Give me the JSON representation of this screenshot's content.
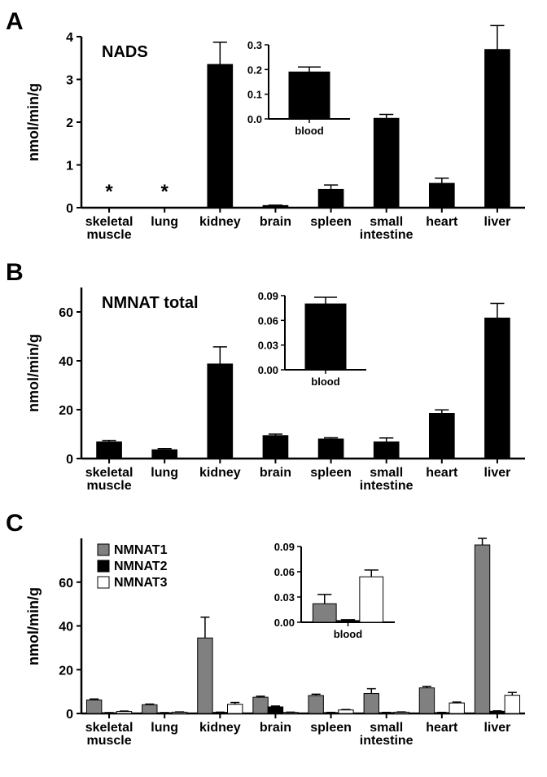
{
  "categories": [
    "skeletal\nmuscle",
    "lung",
    "kidney",
    "brain",
    "spleen",
    "small\nintestine",
    "heart",
    "liver"
  ],
  "colors": {
    "black": "#000000",
    "gray": "#808080",
    "white": "#ffffff",
    "axis": "#000000",
    "bg": "#ffffff"
  },
  "font": {
    "panel_letter": 30,
    "title": 20,
    "axis_label": 18,
    "tick": 16,
    "tick_small": 13,
    "legend": 16
  },
  "panelA": {
    "letter": "A",
    "title": "NADS",
    "ylabel": "nmol/min/g",
    "ylim": [
      0,
      4
    ],
    "yticks": [
      0,
      1,
      2,
      3,
      4
    ],
    "bar_color": "#000000",
    "values": [
      null,
      null,
      3.35,
      0.05,
      0.43,
      2.09,
      0.57,
      3.7
    ],
    "errors": [
      0,
      0,
      0.52,
      0.01,
      0.1,
      0.09,
      0.12,
      0.56
    ],
    "asterisk": [
      true,
      true,
      false,
      false,
      false,
      false,
      false,
      false
    ],
    "bar_width": 0.45,
    "inset": {
      "categories": [
        "blood"
      ],
      "ylim": [
        0,
        0.3
      ],
      "yticks": [
        0.0,
        0.1,
        0.2,
        0.3
      ],
      "values": [
        0.19
      ],
      "errors": [
        0.02
      ],
      "bar_color": "#000000",
      "bar_width": 0.5
    }
  },
  "panelB": {
    "letter": "B",
    "title": "NMNAT total",
    "ylabel": "nmol/min/g",
    "ylim": [
      0,
      70
    ],
    "yticks": [
      0,
      20,
      40,
      60
    ],
    "bar_color": "#000000",
    "values": [
      6.8,
      3.6,
      38.7,
      9.4,
      8.0,
      6.8,
      18.5,
      57.5
    ],
    "errors": [
      0.6,
      0.5,
      7.0,
      0.6,
      0.5,
      1.6,
      1.4,
      6.0
    ],
    "bar_width": 0.45,
    "inset": {
      "categories": [
        "blood"
      ],
      "ylim": [
        0,
        0.09
      ],
      "yticks": [
        0.0,
        0.03,
        0.06,
        0.09
      ],
      "values": [
        0.08
      ],
      "errors": [
        0.008
      ],
      "bar_color": "#000000",
      "bar_width": 0.5
    }
  },
  "panelC": {
    "letter": "C",
    "ylabel": "nmol/min/g",
    "ylim": [
      0,
      80
    ],
    "yticks": [
      0,
      20,
      40,
      60
    ],
    "legend": [
      {
        "label": "NMNAT1",
        "color": "#808080"
      },
      {
        "label": "NMNAT2",
        "color": "#000000"
      },
      {
        "label": "NMNAT3",
        "color": "#ffffff"
      }
    ],
    "series": {
      "NMNAT1": {
        "values": [
          6.2,
          4.0,
          34.5,
          7.4,
          8.2,
          9.1,
          11.7,
          77.0
        ],
        "errors": [
          0.4,
          0.3,
          9.5,
          0.5,
          0.6,
          2.2,
          0.7,
          3.0
        ],
        "color": "#808080"
      },
      "NMNAT2": {
        "values": [
          0.3,
          0.3,
          0.5,
          3.0,
          0.4,
          0.4,
          0.4,
          1.0
        ],
        "errors": [
          0.1,
          0.1,
          0.1,
          0.4,
          0.1,
          0.1,
          0.1,
          0.2
        ],
        "color": "#000000"
      },
      "NMNAT3": {
        "values": [
          0.9,
          0.6,
          4.2,
          0.5,
          1.6,
          0.6,
          4.8,
          8.3
        ],
        "errors": [
          0.2,
          0.1,
          0.8,
          0.1,
          0.2,
          0.1,
          0.4,
          1.3
        ],
        "color": "#ffffff"
      }
    },
    "bar_width": 0.27,
    "inset": {
      "categories": [
        "blood"
      ],
      "series": {
        "NMNAT1": {
          "value": 0.022,
          "error": 0.011,
          "color": "#808080"
        },
        "NMNAT2": {
          "value": 0.002,
          "error": 0.001,
          "color": "#000000"
        },
        "NMNAT3": {
          "value": 0.054,
          "error": 0.008,
          "color": "#ffffff"
        }
      },
      "ylim": [
        0,
        0.09
      ],
      "yticks": [
        0.0,
        0.03,
        0.06,
        0.09
      ],
      "bar_width": 0.25
    }
  }
}
